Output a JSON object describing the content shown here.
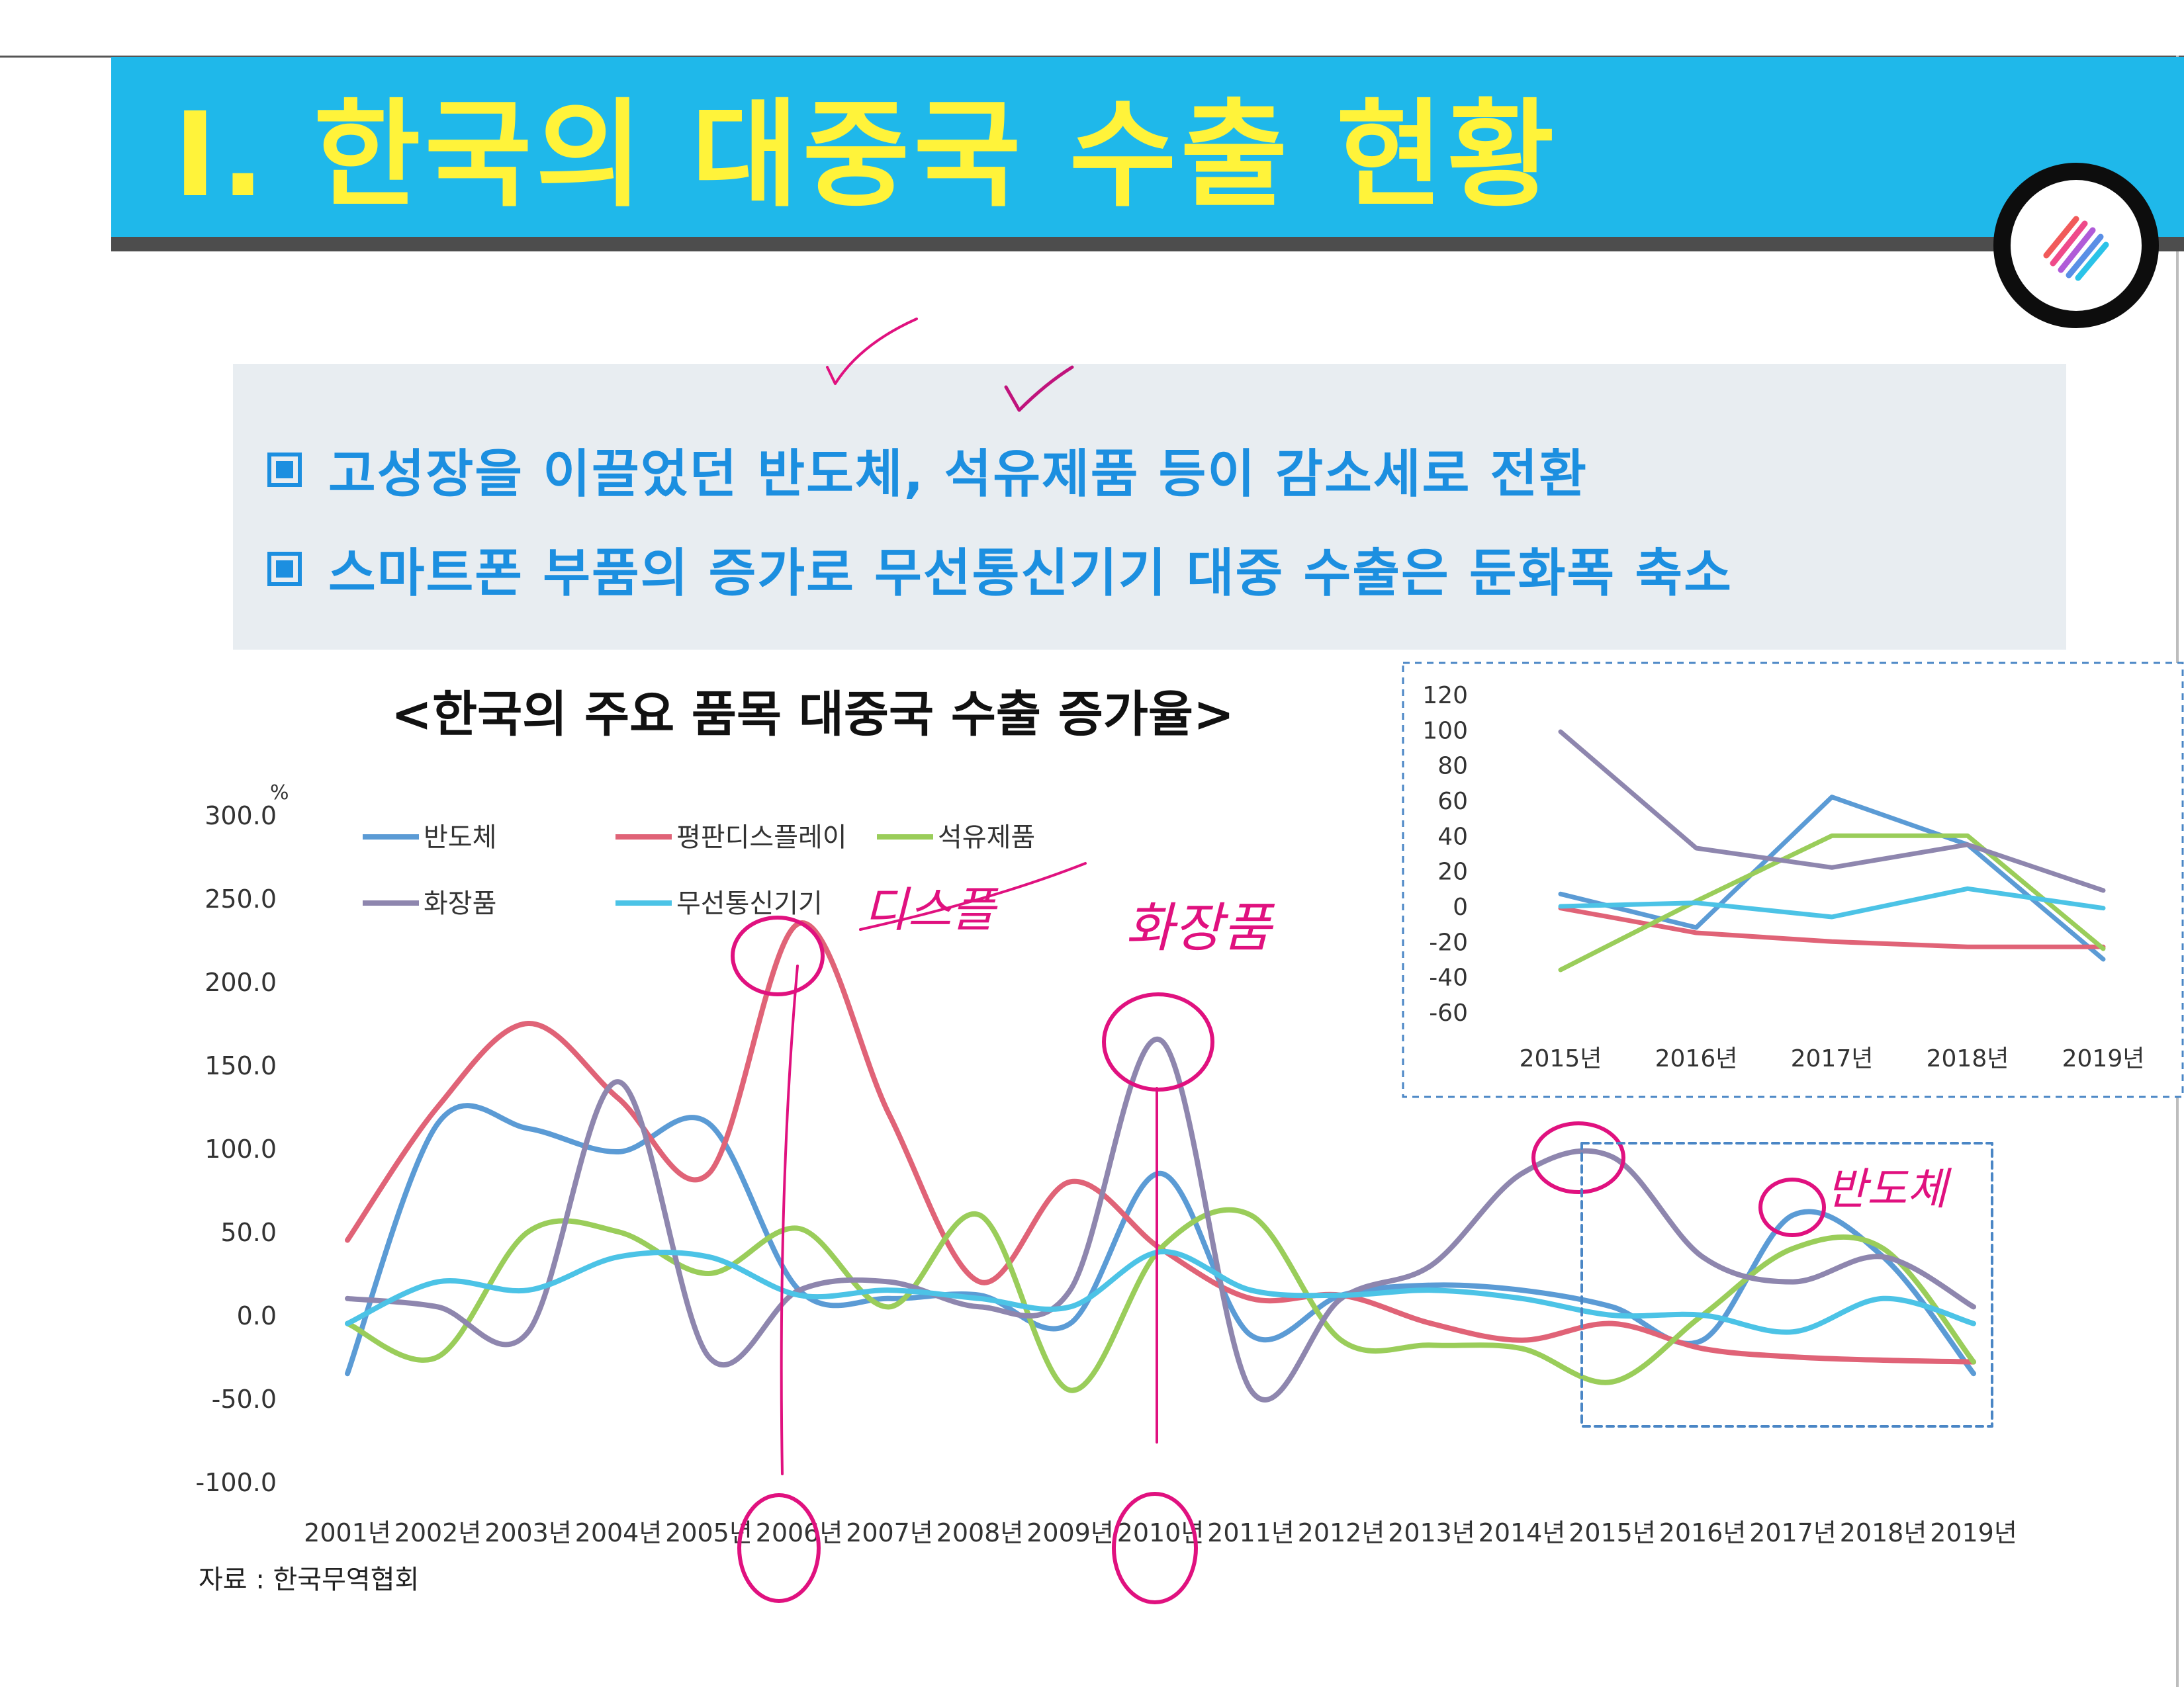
{
  "header": {
    "title": "Ⅰ. 한국의 대중국 수출 현황"
  },
  "summary": {
    "bullets": [
      "고성장을 이끌었던 반도체, 석유제품 등이 감소세로 전환",
      "스마트폰 부품의 증가로 무선통신기기 대중 수출은 둔화폭 축소"
    ]
  },
  "chart_title": "<한국의 주요 품목 대중국 수출 증가율>",
  "source": "자료 : 한국무역협회",
  "colors": {
    "title_bar": "#1fb8ea",
    "title_text": "#fff33a",
    "bullet_text": "#1c8fe0",
    "annotation_ink": "#e0117f",
    "inset_border": "#4a86c5"
  },
  "chart_data": [
    {
      "type": "line",
      "unit": "%",
      "categories": [
        "2001년",
        "2002년",
        "2003년",
        "2004년",
        "2005년",
        "2006년",
        "2007년",
        "2008년",
        "2009년",
        "2010년",
        "2011년",
        "2012년",
        "2013년",
        "2014년",
        "2015년",
        "2016년",
        "2017년",
        "2018년",
        "2019년"
      ],
      "y_ticks": [
        "300.0",
        "250.0",
        "200.0",
        "150.0",
        "100.0",
        "50.0",
        "0.0",
        "-50.0",
        "-100.0"
      ],
      "ylim": [
        -100,
        300
      ],
      "legend": "top-left, two rows",
      "grid": false,
      "smooth": true,
      "series": [
        {
          "name": "반도체",
          "color": "#5b9bd5",
          "values": [
            -35,
            115,
            112,
            98,
            115,
            15,
            10,
            12,
            -5,
            85,
            -12,
            12,
            18,
            15,
            5,
            -15,
            60,
            35,
            -35
          ]
        },
        {
          "name": "평판디스플레이",
          "color": "#e06377",
          "values": [
            45,
            125,
            175,
            130,
            85,
            235,
            120,
            20,
            80,
            40,
            10,
            12,
            -5,
            -15,
            -5,
            -20,
            -25,
            -27,
            -28
          ]
        },
        {
          "name": "석유제품",
          "color": "#9acd5a",
          "values": [
            -5,
            -25,
            50,
            50,
            25,
            52,
            5,
            60,
            -45,
            40,
            60,
            -15,
            -18,
            -20,
            -40,
            0,
            40,
            40,
            -28
          ]
        },
        {
          "name": "화장품",
          "color": "#8e86ae",
          "values": [
            10,
            5,
            -10,
            140,
            -25,
            15,
            20,
            5,
            15,
            165,
            -45,
            10,
            30,
            85,
            95,
            35,
            20,
            35,
            5
          ]
        },
        {
          "name": "무선통신기기",
          "color": "#4cc3e6",
          "values": [
            -5,
            20,
            15,
            35,
            35,
            12,
            15,
            10,
            5,
            38,
            15,
            12,
            15,
            10,
            0,
            0,
            -10,
            10,
            -5
          ]
        }
      ]
    },
    {
      "type": "line",
      "categories": [
        "2015년",
        "2016년",
        "2017년",
        "2018년",
        "2019년"
      ],
      "y_ticks": [
        "120",
        "100",
        "80",
        "60",
        "40",
        "20",
        "0",
        "-20",
        "-40",
        "-60"
      ],
      "ylim": [
        -60,
        120
      ],
      "legend": "none",
      "grid": false,
      "series": [
        {
          "color": "#5b9bd5",
          "values": [
            7,
            -12,
            62,
            35,
            -30
          ]
        },
        {
          "color": "#e06377",
          "values": [
            -1,
            -15,
            -20,
            -23,
            -23
          ]
        },
        {
          "color": "#9acd5a",
          "values": [
            -36,
            3,
            40,
            40,
            -24
          ]
        },
        {
          "color": "#8e86ae",
          "values": [
            99,
            33,
            22,
            35,
            9
          ]
        },
        {
          "color": "#4cc3e6",
          "values": [
            0,
            2,
            -6,
            10,
            -1
          ]
        }
      ]
    }
  ],
  "annotations": {
    "handwritten_notes": [
      "디스플",
      "화장품",
      "반도체"
    ]
  }
}
